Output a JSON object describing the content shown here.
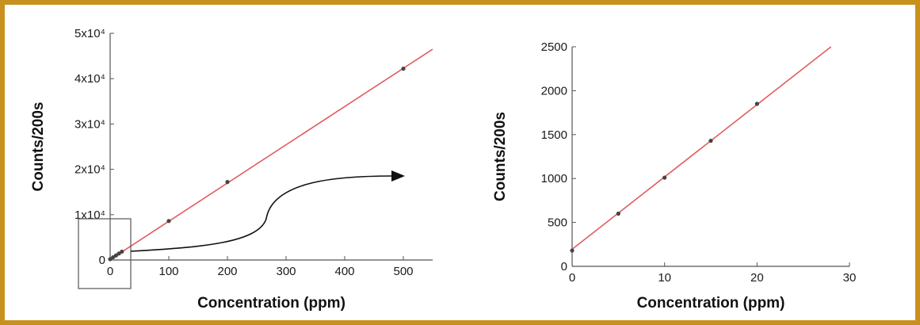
{
  "colors": {
    "frame": "#c8911e",
    "fit_line": "#e25c5c",
    "points": "#444444",
    "axes": "#555555"
  },
  "chart_data": [
    {
      "type": "scatter",
      "xlabel": "Concentration (ppm)",
      "ylabel": "Counts/200s",
      "xlim": [
        0,
        550
      ],
      "ylim": [
        0,
        50000
      ],
      "x_ticks": [
        0,
        100,
        200,
        300,
        400,
        500
      ],
      "x_tick_labels": [
        "0",
        "100",
        "200",
        "300",
        "400",
        "500"
      ],
      "y_ticks": [
        0,
        10000,
        20000,
        30000,
        40000,
        50000
      ],
      "y_tick_labels": [
        "0",
        "1x10⁴",
        "2x10⁴",
        "3x10⁴",
        "4x10⁴",
        "5x10⁴"
      ],
      "grid": false,
      "series": [
        {
          "x": [
            0,
            5,
            10,
            15,
            20,
            100,
            200,
            500
          ],
          "y": [
            180,
            600,
            1010,
            1430,
            1850,
            8600,
            17200,
            42200
          ]
        }
      ],
      "fit_line": {
        "x": [
          0,
          550
        ],
        "y": [
          100,
          46500
        ]
      },
      "annotations": [
        "zoom box around 0–30 ppm",
        "curved arrow pointing to right panel"
      ]
    },
    {
      "type": "scatter",
      "xlabel": "Concentration (ppm)",
      "ylabel": "Counts/200s",
      "xlim": [
        0,
        30
      ],
      "ylim": [
        0,
        2500
      ],
      "x_ticks": [
        0,
        10,
        20,
        30
      ],
      "x_tick_labels": [
        "0",
        "10",
        "20",
        "30"
      ],
      "y_ticks": [
        0,
        500,
        1000,
        1500,
        2000,
        2500
      ],
      "y_tick_labels": [
        "0",
        "500",
        "1000",
        "1500",
        "2000",
        "2500"
      ],
      "grid": false,
      "series": [
        {
          "x": [
            0,
            5,
            10,
            15,
            20
          ],
          "y": [
            180,
            600,
            1010,
            1430,
            1850
          ]
        }
      ],
      "fit_line": {
        "x": [
          0,
          28
        ],
        "y": [
          195,
          2500
        ]
      }
    }
  ]
}
